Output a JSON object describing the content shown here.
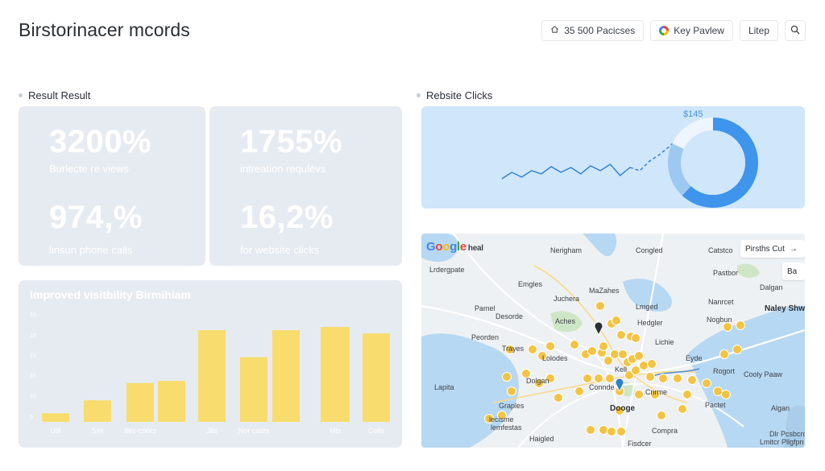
{
  "header": {
    "title": "Birstorinacer mcords",
    "actions": [
      {
        "label": "35 500 Pacicses",
        "icon": "home-icon"
      },
      {
        "label": "Key Pavlew",
        "icon": "google-icon"
      },
      {
        "label": "Litep",
        "icon": ""
      },
      {
        "label": "",
        "icon": "search-icon"
      }
    ]
  },
  "left_section": {
    "label": "Result Result",
    "stats": [
      {
        "value": "3200%",
        "label": "Burlecte re views"
      },
      {
        "value": "1755%",
        "label": "intreation requlevs"
      },
      {
        "value": "974,%",
        "label": "linsun phone calls"
      },
      {
        "value": "16,2%",
        "label": "for website clicks"
      }
    ]
  },
  "right_section": {
    "label": "Rebsite Clicks",
    "donut_label": "$145"
  },
  "chart_data": [
    {
      "type": "bar",
      "title": "Improved visitbility Birmihiam",
      "categories": [
        "Ulfl",
        "Sss",
        "Ifes-conrs",
        "",
        "Jlls",
        "Nor catlrs",
        "",
        "Mls",
        "Cells"
      ],
      "values": [
        8,
        20,
        36,
        38,
        85,
        60,
        85,
        88,
        82
      ],
      "ytick_labels": [
        "0",
        "10",
        "15",
        "15",
        "15",
        "15"
      ],
      "ylim": [
        0,
        100
      ],
      "color": "#f8dc6d"
    },
    {
      "type": "line",
      "values": [
        30,
        38,
        32,
        40,
        36,
        45,
        38,
        44,
        36,
        46,
        40,
        48,
        34,
        44,
        40,
        52,
        60,
        70,
        82
      ],
      "color": "#2d7dd2"
    },
    {
      "type": "pie",
      "values": [
        62,
        20,
        18
      ],
      "colors": [
        "#3f94ec",
        "#9cc8f2",
        "#eef5fc"
      ],
      "label": "$145"
    }
  ],
  "map": {
    "brand": "Google",
    "brand_suffix": "heal",
    "controls": [
      "Pirsths Cut",
      "Ba"
    ],
    "labels": [
      {
        "text": "Lrdergpate"
      },
      {
        "text": "Nerigham"
      },
      {
        "text": "Congled"
      },
      {
        "text": "Catstco"
      },
      {
        "text": "Emgles"
      },
      {
        "text": "MaZahes"
      },
      {
        "text": "Pastbor"
      },
      {
        "text": "Pamel"
      },
      {
        "text": "Juchera"
      },
      {
        "text": "Lmged"
      },
      {
        "text": "Nanrcet"
      },
      {
        "text": "Dalgan"
      },
      {
        "text": "Desorde"
      },
      {
        "text": "Aches"
      },
      {
        "text": "Hedgler"
      },
      {
        "text": "Nogbun"
      },
      {
        "text": "Naley Shwe"
      },
      {
        "text": "Peorden"
      },
      {
        "text": "Trayes"
      },
      {
        "text": "Lichie"
      },
      {
        "text": "Eyde"
      },
      {
        "text": "Lolodes"
      },
      {
        "text": "Kell"
      },
      {
        "text": "Rogort"
      },
      {
        "text": "Dolgan"
      },
      {
        "text": "Cooly Paaw"
      },
      {
        "text": "Lapita"
      },
      {
        "text": "Connde"
      },
      {
        "text": "Cnrme"
      },
      {
        "text": "Graples"
      },
      {
        "text": "Dooge"
      },
      {
        "text": "Algan"
      },
      {
        "text": "Pactet"
      },
      {
        "text": "lecisme"
      },
      {
        "text": "lemfestas"
      },
      {
        "text": "Compra"
      },
      {
        "text": "Haigled"
      },
      {
        "text": "Fisdcer"
      },
      {
        "text": "Dlr Pcsbcrd"
      },
      {
        "text": "Lmitcr Pllgfpn"
      }
    ]
  },
  "colors": {
    "card_bg": "#e6ebf2",
    "bar": "#f8dc6d",
    "line_card_bg": "#cfe6fb",
    "pin": "#f3c443"
  }
}
